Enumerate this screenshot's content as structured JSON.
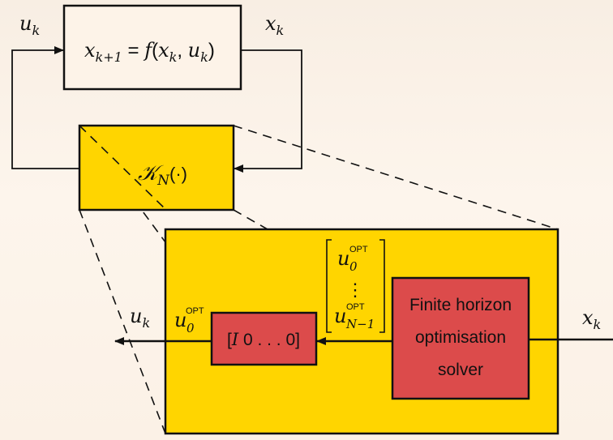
{
  "plant": {
    "equation": {
      "lhs_var": "x",
      "lhs_sub": "k+1",
      "eq": " = ",
      "func": "f",
      "arg_open": "(",
      "arg1_var": "x",
      "arg1_sub": "k",
      "comma": ", ",
      "arg2_var": "u",
      "arg2_sub": "k",
      "arg_close": ")"
    }
  },
  "signals": {
    "u_top": {
      "var": "u",
      "sub": "k"
    },
    "x_top": {
      "var": "x",
      "sub": "k"
    },
    "u_out": {
      "var": "u",
      "sub": "k"
    },
    "x_in": {
      "var": "x",
      "sub": "k"
    },
    "u0_opt": {
      "var": "u",
      "sub": "0",
      "sup": "OPT"
    }
  },
  "controller": {
    "K_symbol": "𝒦",
    "K_sub": "N",
    "K_arg": "(·)"
  },
  "opt_vector": {
    "first": {
      "var": "u",
      "sub": "0",
      "sup": "OPT"
    },
    "dots": "⋮",
    "last": {
      "var": "u",
      "sub": "N−1",
      "sup": "OPT"
    }
  },
  "selector": {
    "text_open": "[",
    "text_I": "I",
    "text_rest": " 0 . . . 0",
    "text_close": "]"
  },
  "solver": {
    "line1": "Finite horizon",
    "line2": "optimisation",
    "line3": "solver"
  },
  "colors": {
    "yellow": "#ffd500",
    "red": "#dc4b4b",
    "line": "#111111",
    "plant_fill": "#fdf3e8"
  }
}
